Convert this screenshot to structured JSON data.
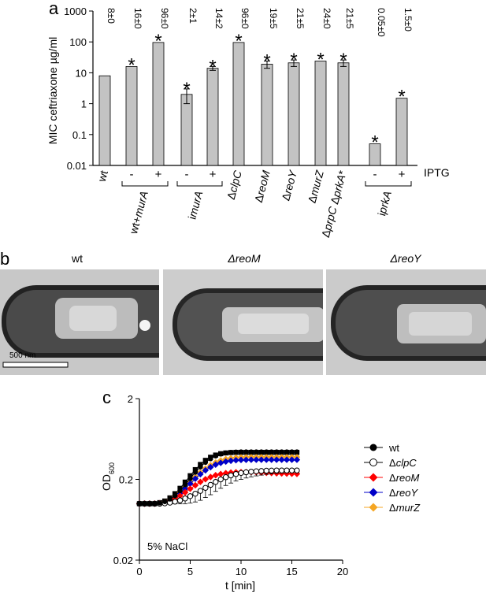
{
  "panel_a": {
    "label": "a",
    "chart_data": {
      "type": "bar",
      "yscale": "log",
      "ylabel": "MIC ceftriaxone µg/ml",
      "ylim": [
        0.01,
        1000
      ],
      "yticks": [
        "0.01",
        "0.1",
        "1",
        "10",
        "100",
        "1000"
      ],
      "ytick_values": [
        0.01,
        0.1,
        1,
        10,
        100,
        1000
      ],
      "bars": [
        {
          "value": 8,
          "err": 0,
          "top_label": "8±0",
          "star": false,
          "tick": "wt"
        },
        {
          "value": 16,
          "err": 0,
          "top_label": "16±0",
          "star": true,
          "tick": "-"
        },
        {
          "value": 96,
          "err": 0,
          "top_label": "96±0",
          "star": true,
          "tick": "+"
        },
        {
          "value": 2,
          "err": 1,
          "top_label": "2±1",
          "star": true,
          "tick": "-"
        },
        {
          "value": 14,
          "err": 2,
          "top_label": "14±2",
          "star": true,
          "tick": "+"
        },
        {
          "value": 96,
          "err": 0,
          "top_label": "96±0",
          "star": true,
          "tick": "ΔclpC"
        },
        {
          "value": 19,
          "err": 5,
          "top_label": "19±5",
          "star": true,
          "tick": "ΔreoM"
        },
        {
          "value": 21,
          "err": 5,
          "top_label": "21±5",
          "star": true,
          "tick": "ΔreoY"
        },
        {
          "value": 24,
          "err": 0,
          "top_label": "24±0",
          "star": true,
          "tick": "ΔmurZ"
        },
        {
          "value": 21,
          "err": 5,
          "top_label": "21±5",
          "star": true,
          "tick": "ΔprpC ΔprkA*"
        },
        {
          "value": 0.05,
          "err": 0,
          "top_label": "0.05±0",
          "star": true,
          "tick": "-"
        },
        {
          "value": 1.5,
          "err": 0,
          "top_label": "1.5±0",
          "star": true,
          "tick": "+"
        }
      ],
      "groups": [
        {
          "label": "wt+murA"
        },
        {
          "label": "imurA"
        },
        {
          "label": "iprkA"
        }
      ],
      "iptg_label": "IPTG",
      "star_symbol": "*"
    }
  },
  "panel_b": {
    "label": "b",
    "images": [
      {
        "label": "wt"
      },
      {
        "label": "ΔreoM"
      },
      {
        "label": "ΔreoY"
      }
    ],
    "scalebar_label": "500 nm"
  },
  "panel_c": {
    "label": "c",
    "annotation": "5% NaCl",
    "chart_data": {
      "type": "line",
      "yscale": "log",
      "ylabel": "OD600",
      "xlabel": "t [min]",
      "xlim": [
        0,
        20
      ],
      "ylim": [
        0.02,
        2
      ],
      "xticks": [
        "0",
        "5",
        "10",
        "15",
        "20"
      ],
      "xtick_values": [
        0,
        5,
        10,
        15,
        20
      ],
      "yticks": [
        "0.02",
        "0.2",
        "2"
      ],
      "ytick_values": [
        0.02,
        0.2,
        2
      ],
      "x": [
        0,
        0.5,
        1,
        1.5,
        2,
        2.5,
        3,
        3.5,
        4,
        4.5,
        5,
        5.5,
        6,
        6.5,
        7,
        7.5,
        8,
        8.5,
        9,
        9.5,
        10,
        10.5,
        11,
        11.5,
        12,
        12.5,
        13,
        13.5,
        14,
        14.5,
        15,
        15.5
      ],
      "series": [
        {
          "name": "wt",
          "color": "#000000",
          "marker": "circle-filled",
          "values": [
            0.1,
            0.1,
            0.1,
            0.1,
            0.102,
            0.106,
            0.114,
            0.126,
            0.145,
            0.172,
            0.205,
            0.245,
            0.285,
            0.325,
            0.36,
            0.39,
            0.412,
            0.425,
            0.432,
            0.436,
            0.438,
            0.438,
            0.438,
            0.438,
            0.438,
            0.438,
            0.438,
            0.438,
            0.438,
            0.438,
            0.438,
            0.438
          ]
        },
        {
          "name": "ΔclpC",
          "color": "#000000",
          "marker": "circle-open",
          "values": [
            0.1,
            0.1,
            0.1,
            0.1,
            0.1,
            0.101,
            0.103,
            0.106,
            0.11,
            0.116,
            0.124,
            0.133,
            0.144,
            0.157,
            0.171,
            0.186,
            0.2,
            0.213,
            0.224,
            0.233,
            0.24,
            0.245,
            0.249,
            0.252,
            0.254,
            0.256,
            0.257,
            0.258,
            0.258,
            0.258,
            0.258,
            0.258
          ],
          "err": [
            0,
            0,
            0,
            0,
            0,
            0.001,
            0.003,
            0.006,
            0.01,
            0.016,
            0.022,
            0.028,
            0.034,
            0.038,
            0.042,
            0.044,
            0.045,
            0.045,
            0.044,
            0.042,
            0.04,
            0.037,
            0.034,
            0.031,
            0.028,
            0.025,
            0.022,
            0.02,
            0.018,
            0.016,
            0.015,
            0.014
          ]
        },
        {
          "name": "ΔreoM",
          "color": "#ff0000",
          "marker": "diamond",
          "values": [
            0.1,
            0.1,
            0.1,
            0.1,
            0.101,
            0.103,
            0.108,
            0.115,
            0.125,
            0.138,
            0.153,
            0.169,
            0.186,
            0.201,
            0.214,
            0.225,
            0.233,
            0.239,
            0.243,
            0.245,
            0.246,
            0.246,
            0.246,
            0.245,
            0.243,
            0.241,
            0.24,
            0.238,
            0.237,
            0.236,
            0.235,
            0.234
          ]
        },
        {
          "name": "ΔreoY",
          "color": "#0000c8",
          "marker": "diamond",
          "values": [
            0.1,
            0.1,
            0.1,
            0.1,
            0.101,
            0.104,
            0.11,
            0.12,
            0.134,
            0.153,
            0.177,
            0.204,
            0.232,
            0.259,
            0.283,
            0.304,
            0.32,
            0.332,
            0.34,
            0.345,
            0.348,
            0.349,
            0.35,
            0.35,
            0.35,
            0.35,
            0.35,
            0.35,
            0.35,
            0.35,
            0.35,
            0.35
          ]
        },
        {
          "name": "ΔmurZ",
          "color": "#f5a623",
          "marker": "diamond",
          "values": [
            0.1,
            0.1,
            0.1,
            0.1,
            0.101,
            0.105,
            0.112,
            0.123,
            0.138,
            0.159,
            0.185,
            0.214,
            0.244,
            0.273,
            0.3,
            0.324,
            0.343,
            0.357,
            0.366,
            0.372,
            0.375,
            0.377,
            0.378,
            0.378,
            0.378,
            0.378,
            0.378,
            0.378,
            0.378,
            0.378,
            0.378,
            0.378
          ]
        }
      ],
      "reference_series": {
        "name": "",
        "color": "#000000",
        "marker": "square-filled",
        "values": [
          0.1,
          0.1,
          0.1,
          0.1,
          0.103,
          0.108,
          0.118,
          0.133,
          0.155,
          0.185,
          0.222,
          0.264,
          0.306,
          0.344,
          0.376,
          0.4,
          0.416,
          0.425,
          0.43,
          0.432,
          0.432,
          0.432,
          0.432,
          0.432,
          0.432,
          0.432,
          0.432,
          0.432,
          0.432,
          0.432,
          0.432,
          0.432
        ]
      }
    }
  }
}
